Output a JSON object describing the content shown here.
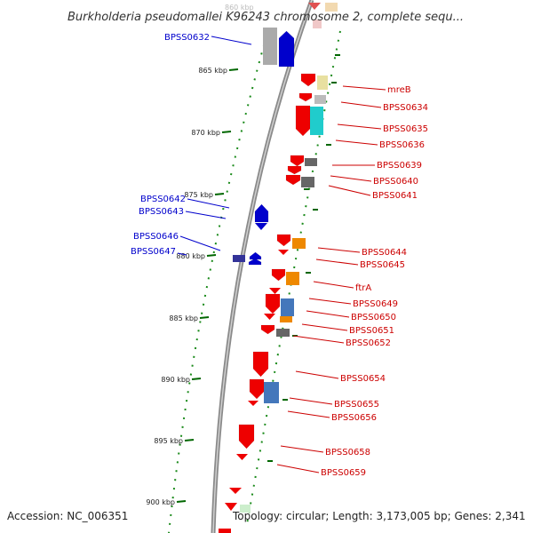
{
  "title": "Burkholderia pseudomallei K96243 chromosome 2, complete sequ...",
  "accession": "Accession: NC_006351",
  "summary": "Topology: circular; Length: 3,173,005 bp; Genes: 2,341",
  "top_faint_tick": "860 kbp",
  "kbp_ticks": [
    "865 kbp",
    "870 kbp",
    "875 kbp",
    "880 kbp",
    "885 kbp",
    "890 kbp",
    "895 kbp",
    "900 kbp"
  ],
  "colors": {
    "reverse_label": "#0000cc",
    "forward_label": "#cc0000",
    "backbone": "#888888",
    "tick": "#006600"
  },
  "reverse_labels": [
    "BPSS0632",
    "BPSS0642",
    "BPSS0643",
    "BPSS0646",
    "BPSS0647"
  ],
  "forward_labels": [
    "mreB",
    "BPSS0634",
    "BPSS0635",
    "BPSS0636",
    "BPSS0639",
    "BPSS0640",
    "BPSS0641",
    "BPSS0644",
    "BPSS0645",
    "ftrA",
    "BPSS0649",
    "BPSS0650",
    "BPSS0651",
    "BPSS0652",
    "BPSS0654",
    "BPSS0655",
    "BPSS0656",
    "BPSS0658",
    "BPSS0659"
  ]
}
